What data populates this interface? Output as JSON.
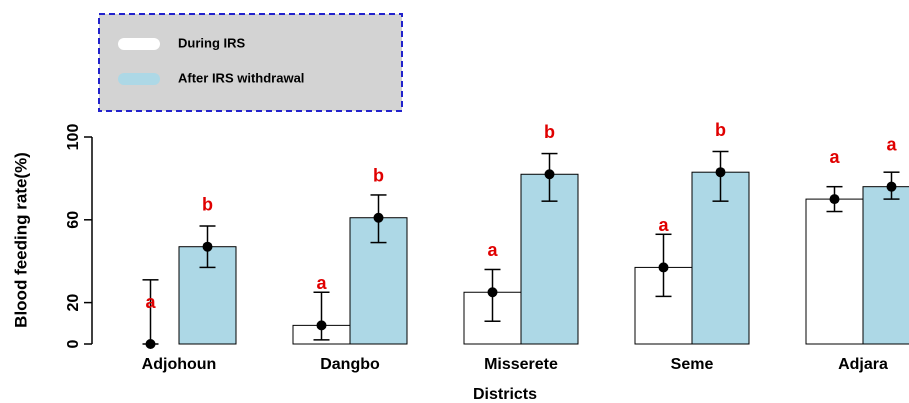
{
  "chart_data": {
    "type": "bar",
    "x_label": "Districts",
    "y_label": "Blood feeding rate(%)",
    "categories": [
      "Adjohoun",
      "Dangbo",
      "Misserete",
      "Seme",
      "Adjara"
    ],
    "ylim": [
      0,
      100
    ],
    "yticks": [
      0,
      20,
      60,
      100
    ],
    "legend_position": "top-left",
    "series": [
      {
        "name": "During IRS",
        "color": "#ffffff",
        "values": [
          0,
          9,
          25,
          37,
          70
        ],
        "lower": [
          0,
          2,
          11,
          23,
          64
        ],
        "upper": [
          31,
          25,
          36,
          53,
          76
        ],
        "letters": [
          "a",
          "a",
          "a",
          "a",
          "a"
        ]
      },
      {
        "name": "After IRS withdrawal",
        "color": "#add8e6",
        "values": [
          47,
          61,
          82,
          83,
          76
        ],
        "lower": [
          37,
          49,
          69,
          69,
          70
        ],
        "upper": [
          57,
          72,
          92,
          93,
          83
        ],
        "letters": [
          "b",
          "b",
          "b",
          "b",
          "a"
        ]
      }
    ]
  }
}
